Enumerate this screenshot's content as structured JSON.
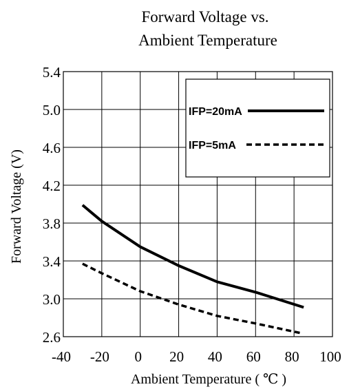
{
  "chart_data": {
    "type": "line",
    "title": [
      "Forward Voltage vs.",
      "Ambient Temperature"
    ],
    "xlabel": "Ambient Temperature ( ℃ )",
    "ylabel": "Forward Voltage (V)",
    "xlim": [
      -40,
      100
    ],
    "ylim": [
      2.6,
      5.4
    ],
    "xticks": [
      -40,
      -20,
      0,
      20,
      40,
      60,
      80,
      100
    ],
    "yticks": [
      2.6,
      3.0,
      3.4,
      3.8,
      4.2,
      4.6,
      5.0,
      5.4
    ],
    "xtick_labels": [
      "-40",
      "-20",
      "0",
      "20",
      "40",
      "60",
      "80",
      "100"
    ],
    "ytick_labels": [
      "2.6",
      "3.0",
      "3.4",
      "3.8",
      "4.2",
      "4.6",
      "5.0",
      "5.4"
    ],
    "grid": true,
    "legend_position": "top-right",
    "series": [
      {
        "name": "IFP=20mA",
        "style": "solid",
        "color": "#000000",
        "points": [
          [
            -30,
            3.99
          ],
          [
            -20,
            3.82
          ],
          [
            0,
            3.55
          ],
          [
            20,
            3.35
          ],
          [
            40,
            3.18
          ],
          [
            60,
            3.07
          ],
          [
            85,
            2.91
          ]
        ]
      },
      {
        "name": "IFP=5mA",
        "style": "dashed",
        "color": "#000000",
        "points": [
          [
            -30,
            3.37
          ],
          [
            -20,
            3.27
          ],
          [
            0,
            3.08
          ],
          [
            20,
            2.94
          ],
          [
            40,
            2.82
          ],
          [
            60,
            2.74
          ],
          [
            83,
            2.64
          ]
        ]
      }
    ]
  }
}
